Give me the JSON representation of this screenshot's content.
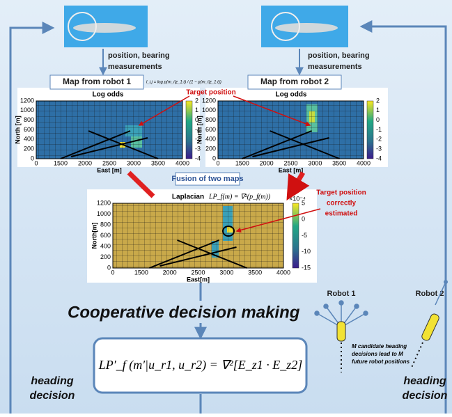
{
  "robot1": {
    "measure_lines": [
      "position, bearing",
      "measurements"
    ],
    "map_title": "Map from robot 1",
    "formula": "l_i,j = log p(m_i|z_1:t) / (1 − p(m_i|z_1:t))"
  },
  "robot2": {
    "measure_lines": [
      "position, bearing",
      "measurements"
    ],
    "map_title": "Map from robot 2"
  },
  "plot1": {
    "title": "Log odds",
    "xlabel": "East [m]",
    "ylabel": "North [m]",
    "xticks": [
      "0",
      "1500",
      "2000",
      "2500",
      "3000",
      "3500",
      "4000"
    ],
    "yticks": [
      "0",
      "200",
      "400",
      "600",
      "800",
      "1000",
      "1200"
    ],
    "cbar": [
      "2",
      "1",
      "0",
      "-1",
      "-2",
      "-3",
      "-4"
    ]
  },
  "plot2": {
    "title": "Log odds",
    "xlabel": "East [m]",
    "ylabel": "North [m]",
    "xticks": [
      "0",
      "1500",
      "2000",
      "2500",
      "3000",
      "3500",
      "4000"
    ],
    "yticks": [
      "0",
      "200",
      "400",
      "600",
      "800",
      "1000",
      "1200"
    ],
    "cbar": [
      "2",
      "1",
      "0",
      "-1",
      "-2",
      "-3",
      "-4"
    ]
  },
  "target_label": "Target position",
  "fusion_label": "Fusion of two maps",
  "plot3": {
    "title": "Laplacian",
    "formula": "LP_f(m) = ∇²(p_f(m))",
    "xlabel": "East[m]",
    "ylabel": "North[m]",
    "xticks": [
      "0",
      "1500",
      "2000",
      "2500",
      "3000",
      "3500",
      "4000"
    ],
    "yticks": [
      "0",
      "200",
      "400",
      "600",
      "800",
      "1000",
      "1200"
    ],
    "cbar_scale": "×10⁻⁴",
    "cbar": [
      "5",
      "0",
      "-5",
      "-10",
      "-15"
    ]
  },
  "target_correct_lines": [
    "Target position",
    "correctly",
    "estimated"
  ],
  "heading": "Cooperative decision making",
  "main_formula": "LP′_f (m′|u_r1, u_r2) = ∇²[E_z1 · E_z2]",
  "robot_labels": [
    "Robot 1",
    "Robot 2"
  ],
  "candidate_lines": [
    "M candidate heading",
    "decisions lead to M",
    "future robot positions"
  ],
  "left_decision": [
    "heading",
    "decision"
  ],
  "right_decision": [
    "heading",
    "decision"
  ]
}
